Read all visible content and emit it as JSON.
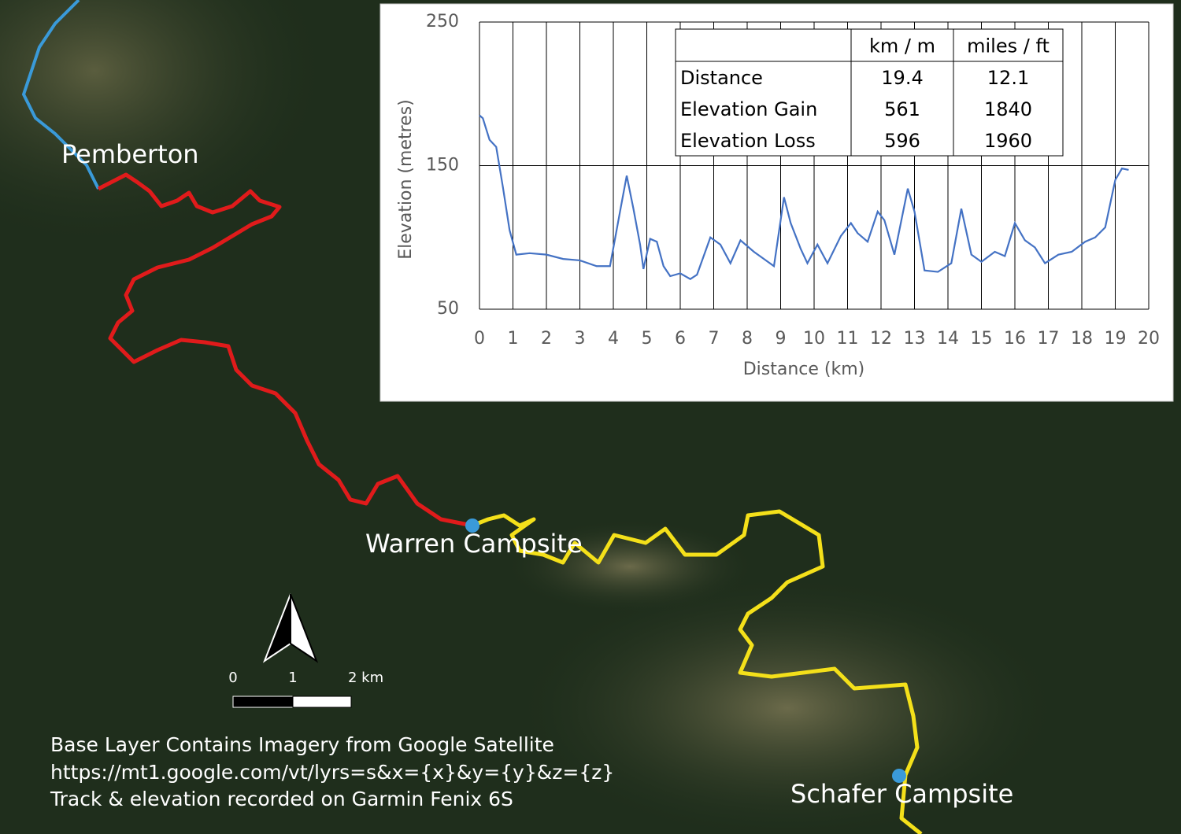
{
  "map": {
    "places": [
      "Pemberton",
      "Warren Campsite",
      "Schafer Campsite"
    ],
    "scale_labels": [
      "0",
      "1",
      "2 km"
    ],
    "attribution": [
      "Base Layer Contains Imagery from Google Satellite",
      "https://mt1.google.com/vt/lyrs=s&x={x}&y={y}&z={z}",
      "Track & elevation recorded on Garmin Fenix 6S"
    ]
  },
  "chart_data": {
    "type": "line",
    "x_label": "Distance (km)",
    "y_label": "Elevation (metres)",
    "xlim": [
      0,
      20
    ],
    "xticks": [
      0,
      1,
      2,
      3,
      4,
      5,
      6,
      7,
      8,
      9,
      10,
      11,
      12,
      13,
      14,
      15,
      16,
      17,
      18,
      19,
      20
    ],
    "ylim": [
      50,
      250
    ],
    "yticks": [
      50,
      150,
      250
    ],
    "grid": true,
    "series": [
      {
        "color": "#4472c4",
        "x": [
          0,
          0.1,
          0.3,
          0.5,
          0.7,
          0.9,
          1.1,
          1.5,
          2,
          2.5,
          3,
          3.5,
          3.9,
          4.2,
          4.4,
          4.6,
          4.8,
          4.9,
          5.1,
          5.3,
          5.5,
          5.7,
          6,
          6.3,
          6.5,
          6.9,
          7.2,
          7.5,
          7.8,
          8.2,
          8.5,
          8.8,
          9.1,
          9.3,
          9.6,
          9.8,
          10.1,
          10.4,
          10.8,
          11.1,
          11.3,
          11.6,
          11.9,
          12.1,
          12.4,
          12.8,
          13.0,
          13.3,
          13.7,
          14.1,
          14.4,
          14.7,
          15,
          15.4,
          15.7,
          16,
          16.3,
          16.6,
          16.9,
          17.3,
          17.7,
          18.1,
          18.4,
          18.7,
          19,
          19.2,
          19.4
        ],
        "values": [
          185,
          183,
          168,
          163,
          135,
          105,
          88,
          89,
          88,
          85,
          84,
          80,
          80,
          118,
          143,
          120,
          95,
          78,
          99,
          97,
          80,
          73,
          75,
          71,
          74,
          100,
          95,
          82,
          98,
          90,
          85,
          80,
          128,
          110,
          92,
          82,
          95,
          82,
          101,
          110,
          103,
          97,
          118,
          112,
          88,
          134,
          118,
          77,
          76,
          82,
          120,
          88,
          83,
          90,
          87,
          110,
          98,
          93,
          82,
          88,
          90,
          97,
          100,
          107,
          140,
          148,
          147
        ]
      }
    ],
    "table": {
      "header": [
        "km / m",
        "miles / ft"
      ],
      "rows": [
        [
          "Distance",
          19.4,
          12.1
        ],
        [
          "Elevation Gain",
          561,
          1840
        ],
        [
          "Elevation Loss",
          596,
          1960
        ]
      ]
    }
  }
}
